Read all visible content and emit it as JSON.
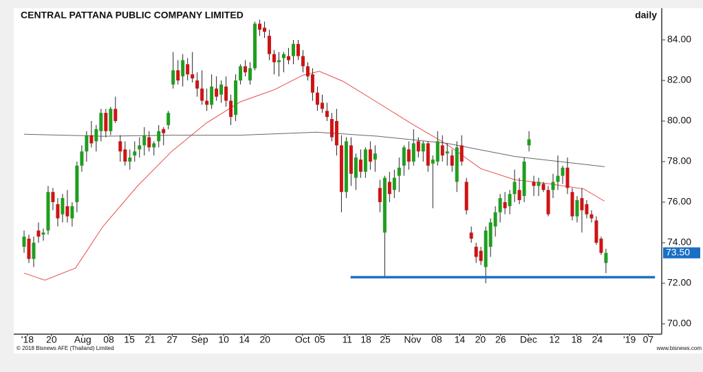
{
  "chart_data": {
    "type": "candlestick",
    "title": "CENTRAL PATTANA PUBLIC COMPANY LIMITED",
    "period": "daily",
    "copyright": "© 2018 Bisnews AFE (Thailand) Limited",
    "source": "www.bisnews.com",
    "up_color": "#1f9e1f",
    "down_color": "#cc1414",
    "wick_color": "#222222",
    "ylim": [
      69.49,
      85.56
    ],
    "yticks": [
      {
        "value": 70,
        "label": "70.00"
      },
      {
        "value": 72,
        "label": "72.00"
      },
      {
        "value": 74,
        "label": "74.00"
      },
      {
        "value": 76,
        "label": "76.00"
      },
      {
        "value": 78,
        "label": "78.00"
      },
      {
        "value": 80,
        "label": "80.00"
      },
      {
        "value": 82,
        "label": "82.00"
      },
      {
        "value": 84,
        "label": "84.00"
      }
    ],
    "xlim": [
      -1.43,
      132.6
    ],
    "xticks": [
      {
        "value": 0.7,
        "label": "'18"
      },
      {
        "value": 5.7,
        "label": "20"
      },
      {
        "value": 12.2,
        "label": "Aug"
      },
      {
        "value": 17.6,
        "label": "08"
      },
      {
        "value": 21.9,
        "label": "15"
      },
      {
        "value": 26.2,
        "label": "21"
      },
      {
        "value": 30.8,
        "label": "27"
      },
      {
        "value": 36.5,
        "label": "Sep"
      },
      {
        "value": 41.5,
        "label": "10"
      },
      {
        "value": 45.8,
        "label": "14"
      },
      {
        "value": 50.1,
        "label": "20"
      },
      {
        "value": 57.9,
        "label": "Oct"
      },
      {
        "value": 61.5,
        "label": "05"
      },
      {
        "value": 67.2,
        "label": "11"
      },
      {
        "value": 71.1,
        "label": "18"
      },
      {
        "value": 75.1,
        "label": "25"
      },
      {
        "value": 80.8,
        "label": "Nov"
      },
      {
        "value": 85.8,
        "label": "08"
      },
      {
        "value": 90.6,
        "label": "14"
      },
      {
        "value": 94.9,
        "label": "20"
      },
      {
        "value": 99.1,
        "label": "26"
      },
      {
        "value": 104.9,
        "label": "Dec"
      },
      {
        "value": 110.3,
        "label": "12"
      },
      {
        "value": 114.9,
        "label": "18"
      },
      {
        "value": 119.2,
        "label": "24"
      },
      {
        "value": 125.9,
        "label": "'19"
      },
      {
        "value": 129.8,
        "label": "07"
      }
    ],
    "ohlc": [
      [
        73.8,
        74.6,
        73.5,
        74.3
      ],
      [
        74.2,
        74.4,
        73.0,
        73.2
      ],
      [
        73.2,
        74.3,
        72.8,
        74.0
      ],
      [
        74.6,
        75.0,
        74.0,
        74.3
      ],
      [
        74.4,
        74.7,
        74.1,
        74.5
      ],
      [
        74.6,
        76.8,
        74.4,
        76.5
      ],
      [
        76.5,
        76.7,
        75.6,
        76.0
      ],
      [
        75.9,
        76.2,
        74.8,
        75.2
      ],
      [
        75.4,
        76.4,
        75.0,
        76.2
      ],
      [
        75.8,
        76.6,
        75.0,
        75.3
      ],
      [
        75.2,
        76.0,
        74.8,
        75.8
      ],
      [
        76.0,
        78.0,
        75.5,
        77.8
      ],
      [
        77.8,
        78.8,
        77.5,
        78.5
      ],
      [
        78.5,
        79.5,
        78.0,
        79.3
      ],
      [
        79.3,
        80.0,
        78.7,
        78.9
      ],
      [
        79.0,
        79.8,
        78.5,
        79.6
      ],
      [
        79.5,
        80.6,
        79.0,
        80.4
      ],
      [
        80.4,
        80.6,
        79.2,
        79.5
      ],
      [
        79.5,
        80.7,
        79.3,
        80.6
      ],
      [
        80.6,
        81.2,
        79.9,
        80.0
      ],
      [
        79.0,
        79.3,
        78.0,
        78.5
      ],
      [
        78.6,
        79.0,
        77.8,
        78.0
      ],
      [
        78.0,
        78.6,
        77.6,
        78.2
      ],
      [
        78.3,
        79.0,
        78.0,
        78.5
      ],
      [
        78.6,
        79.2,
        78.2,
        78.8
      ],
      [
        78.8,
        79.7,
        78.3,
        79.3
      ],
      [
        79.2,
        79.5,
        78.5,
        78.7
      ],
      [
        78.7,
        79.0,
        78.3,
        78.9
      ],
      [
        79.0,
        79.8,
        78.7,
        79.5
      ],
      [
        79.6,
        79.7,
        78.8,
        79.4
      ],
      [
        79.8,
        80.5,
        79.6,
        80.4
      ],
      [
        81.8,
        83.4,
        81.6,
        82.5
      ],
      [
        82.5,
        83.0,
        81.8,
        82.0
      ],
      [
        82.2,
        83.3,
        81.7,
        83.0
      ],
      [
        82.8,
        83.1,
        82.0,
        82.3
      ],
      [
        82.3,
        83.4,
        81.9,
        82.1
      ],
      [
        82.0,
        82.4,
        81.2,
        81.6
      ],
      [
        81.6,
        82.5,
        80.8,
        81.0
      ],
      [
        81.0,
        81.6,
        80.5,
        80.8
      ],
      [
        80.8,
        82.3,
        80.6,
        81.7
      ],
      [
        81.6,
        82.2,
        81.0,
        81.2
      ],
      [
        81.3,
        82.0,
        80.9,
        81.8
      ],
      [
        81.7,
        82.2,
        80.7,
        81.0
      ],
      [
        81.0,
        81.3,
        79.8,
        80.2
      ],
      [
        80.3,
        82.3,
        80.0,
        82.0
      ],
      [
        82.0,
        82.8,
        81.8,
        82.7
      ],
      [
        82.7,
        83.0,
        82.2,
        82.4
      ],
      [
        82.0,
        82.9,
        81.8,
        82.6
      ],
      [
        82.6,
        84.9,
        82.5,
        84.8
      ],
      [
        84.8,
        85.0,
        84.2,
        84.5
      ],
      [
        84.6,
        84.9,
        84.1,
        84.4
      ],
      [
        84.2,
        84.5,
        83.0,
        83.3
      ],
      [
        83.3,
        83.5,
        82.3,
        82.9
      ],
      [
        82.9,
        83.4,
        82.2,
        83.0
      ],
      [
        83.1,
        83.4,
        82.4,
        83.3
      ],
      [
        83.2,
        83.6,
        82.8,
        83.0
      ],
      [
        83.2,
        84.0,
        82.8,
        83.8
      ],
      [
        83.8,
        84.0,
        83.0,
        83.2
      ],
      [
        83.2,
        83.5,
        82.4,
        82.7
      ],
      [
        82.7,
        82.9,
        82.0,
        82.2
      ],
      [
        82.3,
        82.6,
        81.0,
        81.4
      ],
      [
        81.4,
        81.7,
        80.5,
        80.8
      ],
      [
        80.9,
        81.3,
        80.4,
        80.6
      ],
      [
        80.5,
        80.9,
        80.0,
        80.2
      ],
      [
        80.1,
        80.4,
        79.0,
        79.2
      ],
      [
        80.0,
        80.6,
        78.3,
        78.8
      ],
      [
        78.8,
        79.3,
        75.5,
        76.5
      ],
      [
        76.5,
        79.2,
        76.2,
        79.0
      ],
      [
        78.8,
        79.2,
        76.8,
        77.4
      ],
      [
        77.2,
        78.4,
        76.6,
        78.2
      ],
      [
        78.1,
        78.6,
        77.2,
        77.5
      ],
      [
        77.5,
        78.7,
        77.2,
        78.6
      ],
      [
        78.6,
        79.0,
        77.6,
        78.0
      ],
      [
        78.1,
        78.8,
        77.5,
        78.4
      ],
      [
        76.7,
        77.1,
        75.5,
        76.0
      ],
      [
        74.5,
        77.3,
        72.3,
        77.2
      ],
      [
        77.0,
        77.5,
        76.0,
        76.4
      ],
      [
        76.6,
        77.6,
        76.2,
        77.2
      ],
      [
        77.3,
        78.2,
        76.5,
        77.7
      ],
      [
        77.8,
        78.8,
        77.3,
        78.7
      ],
      [
        78.6,
        79.0,
        77.6,
        78.0
      ],
      [
        78.0,
        79.6,
        77.8,
        78.9
      ],
      [
        79.0,
        79.2,
        78.2,
        78.5
      ],
      [
        78.5,
        79.0,
        78.0,
        78.9
      ],
      [
        78.9,
        79.0,
        77.5,
        77.8
      ],
      [
        77.9,
        78.3,
        75.7,
        78.1
      ],
      [
        78.0,
        79.5,
        77.8,
        79.0
      ],
      [
        78.8,
        79.3,
        78.0,
        78.3
      ],
      [
        78.4,
        78.9,
        77.8,
        78.5
      ],
      [
        78.3,
        78.6,
        77.5,
        77.8
      ],
      [
        77.0,
        79.0,
        76.5,
        78.7
      ],
      [
        78.8,
        79.3,
        77.8,
        78.0
      ],
      [
        77.0,
        77.2,
        75.4,
        75.6
      ],
      [
        74.5,
        74.8,
        74.0,
        74.2
      ],
      [
        73.8,
        74.0,
        73.0,
        73.3
      ],
      [
        73.6,
        73.8,
        72.9,
        73.1
      ],
      [
        72.8,
        74.8,
        72.0,
        74.6
      ],
      [
        73.8,
        75.2,
        73.3,
        75.0
      ],
      [
        74.8,
        75.8,
        74.3,
        75.5
      ],
      [
        75.5,
        76.4,
        75.0,
        76.2
      ],
      [
        76.0,
        76.5,
        75.4,
        75.7
      ],
      [
        75.8,
        76.6,
        75.4,
        76.4
      ],
      [
        76.4,
        77.6,
        76.0,
        77.0
      ],
      [
        76.6,
        77.2,
        75.9,
        76.1
      ],
      [
        76.3,
        78.2,
        76.0,
        78.0
      ],
      [
        78.8,
        79.5,
        78.5,
        79.1
      ],
      [
        77.0,
        77.3,
        76.3,
        76.8
      ],
      [
        76.8,
        77.2,
        76.3,
        77.0
      ],
      [
        76.9,
        77.0,
        76.5,
        76.6
      ],
      [
        76.6,
        76.8,
        75.3,
        75.4
      ],
      [
        76.6,
        77.4,
        76.2,
        77.0
      ],
      [
        77.0,
        78.3,
        76.6,
        77.3
      ],
      [
        77.3,
        77.8,
        76.9,
        77.7
      ],
      [
        77.7,
        78.2,
        76.4,
        76.7
      ],
      [
        76.5,
        76.7,
        75.1,
        75.3
      ],
      [
        75.3,
        76.3,
        75.0,
        76.1
      ],
      [
        76.2,
        76.7,
        74.5,
        75.6
      ],
      [
        75.9,
        76.1,
        75.2,
        75.4
      ],
      [
        75.4,
        75.6,
        75.0,
        75.2
      ],
      [
        75.1,
        75.3,
        73.9,
        74.0
      ],
      [
        74.2,
        74.3,
        73.4,
        73.5
      ],
      [
        73.0,
        73.7,
        72.5,
        73.5
      ]
    ],
    "series": [
      {
        "color": "#e84a4a",
        "x": [
          0,
          4.3,
          10.7,
          16.4,
          23.6,
          30.7,
          37.9,
          45,
          52.1,
          57.9,
          61.4,
          66.4,
          73.6,
          80.7,
          87.9,
          95,
          102.1,
          109.3,
          116.4,
          120.7
        ],
        "values": [
          72.5,
          72.15,
          72.75,
          74.8,
          76.8,
          78.5,
          79.9,
          80.95,
          81.55,
          82.25,
          82.45,
          81.95,
          80.9,
          79.85,
          78.85,
          77.65,
          77.1,
          76.9,
          76.65,
          76.05
        ]
      },
      {
        "color": "#666666",
        "x": [
          0,
          16.4,
          30.7,
          45,
          60.8,
          73.6,
          87.9,
          102.1,
          120.7
        ],
        "values": [
          79.35,
          79.25,
          79.3,
          79.3,
          79.45,
          79.25,
          78.9,
          78.25,
          77.75
        ]
      }
    ],
    "support": {
      "value": 72.3,
      "x": [
        67.9,
        131.2
      ],
      "color": "#1a6fc4"
    },
    "last_price": {
      "value": 73.5,
      "label": "73.50",
      "color": "#1a6fc4"
    }
  }
}
